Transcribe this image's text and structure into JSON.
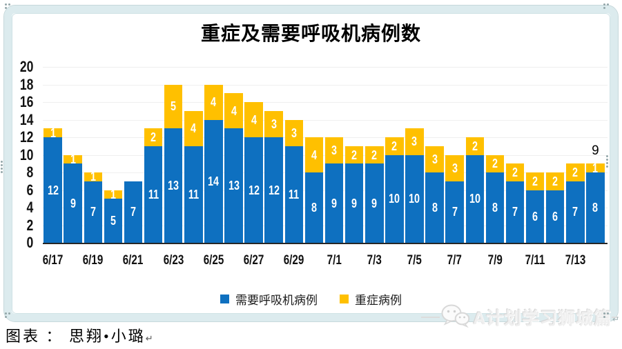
{
  "title": "重症及需要呼吸机病例数",
  "chart_data": {
    "type": "bar",
    "stacked": true,
    "x": [
      "6/17",
      "6/18",
      "6/19",
      "6/20",
      "6/21",
      "6/22",
      "6/23",
      "6/24",
      "6/25",
      "6/26",
      "6/27",
      "6/28",
      "6/29",
      "6/30",
      "7/1",
      "7/2",
      "7/3",
      "7/4",
      "7/5",
      "7/6",
      "7/7",
      "7/8",
      "7/9",
      "7/10",
      "7/11",
      "7/12",
      "7/13",
      "7/14"
    ],
    "series": [
      {
        "name": "需要呼吸机病例",
        "color": "#0E70C0",
        "values": [
          12,
          9,
          7,
          5,
          7,
          11,
          13,
          11,
          14,
          13,
          12,
          12,
          11,
          8,
          9,
          9,
          9,
          10,
          10,
          8,
          7,
          10,
          8,
          7,
          6,
          6,
          7,
          8
        ]
      },
      {
        "name": "重症病例",
        "color": "#FFC000",
        "values": [
          1,
          1,
          1,
          1,
          0,
          2,
          5,
          4,
          4,
          4,
          4,
          3,
          3,
          4,
          3,
          2,
          2,
          2,
          3,
          3,
          3,
          2,
          2,
          2,
          2,
          2,
          2,
          1
        ]
      }
    ],
    "ylim": [
      0,
      20
    ],
    "ytick_step": 2,
    "yticks": [
      "0",
      "2",
      "4",
      "6",
      "8",
      "10",
      "12",
      "14",
      "16",
      "18",
      "20"
    ],
    "xtick_labels_shown": [
      "6/17",
      "6/19",
      "6/21",
      "6/23",
      "6/25",
      "6/27",
      "6/29",
      "7/1",
      "7/3",
      "7/5",
      "7/7",
      "7/9",
      "7/11",
      "7/13"
    ],
    "grid": true,
    "legend_position": "bottom",
    "annotations": [
      {
        "text": "9",
        "bar_index": 27
      }
    ]
  },
  "caption": {
    "text": "图表 ： 思翔•小璐",
    "return_mark": "↵"
  },
  "watermark": {
    "text": "A计划学习狮城篇",
    "icon": "wechat-icon"
  },
  "colors": {
    "ventilator_blue": "#0E70C0",
    "severe_yellow": "#FFC000",
    "frame": "#dcebee",
    "gridline": "#efefef",
    "axis": "#262626"
  }
}
